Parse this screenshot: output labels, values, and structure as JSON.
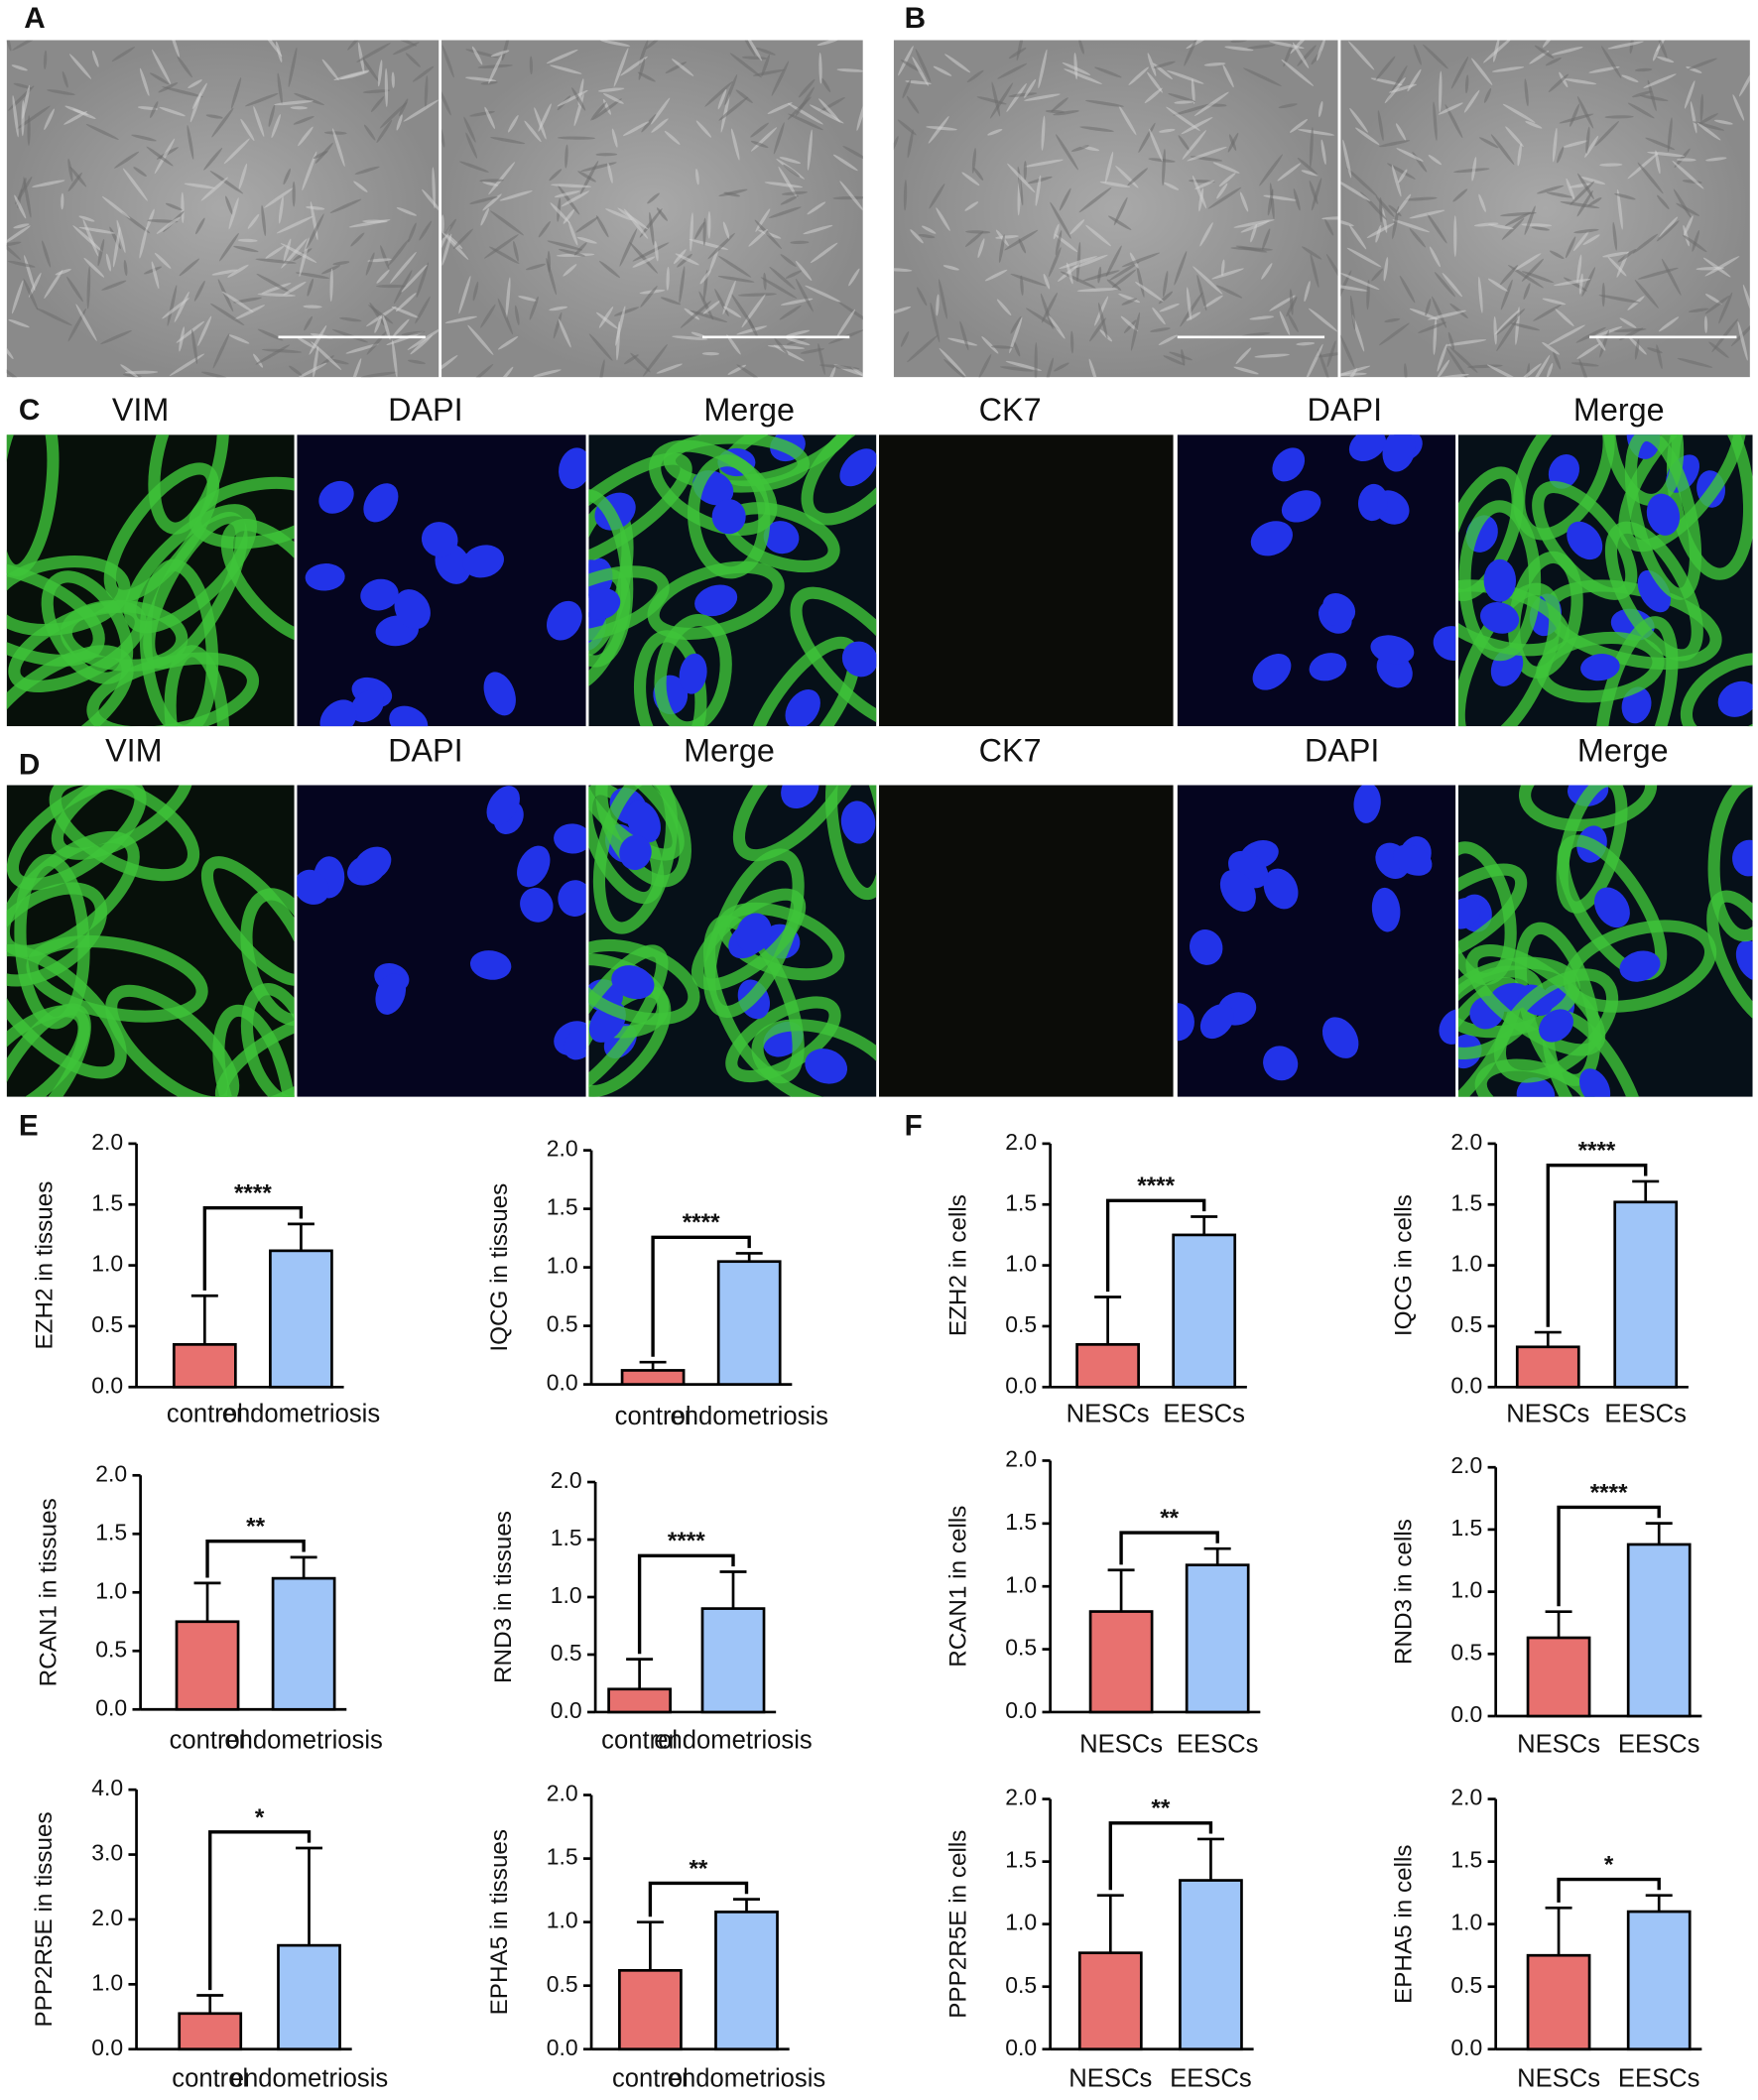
{
  "panel_labels": [
    "A",
    "B",
    "C",
    "D",
    "E",
    "F"
  ],
  "stain_labels": {
    "C": [
      "VIM",
      "DAPI",
      "Merge",
      "CK7",
      "DAPI",
      "Merge"
    ],
    "D": [
      "VIM",
      "DAPI",
      "Merge",
      "CK7",
      "DAPI",
      "Merge"
    ]
  },
  "chart_data": [
    {
      "type": "bar",
      "ylabel": "EZH2 in tissues",
      "categories": [
        "control",
        "endometriosis"
      ],
      "values": [
        0.35,
        1.12
      ],
      "errors": [
        0.4,
        0.22
      ],
      "colors": [
        "#e8716f",
        "#9fc5f8"
      ],
      "significance": "****",
      "ylim": [
        0,
        2
      ],
      "yticks": [
        {
          "value": 0,
          "label": "0.0"
        },
        {
          "value": 0.5,
          "label": "0.5"
        },
        {
          "value": 1,
          "label": "1.0"
        },
        {
          "value": 1.5,
          "label": "1.5"
        },
        {
          "value": 2,
          "label": "2.0"
        }
      ]
    },
    {
      "type": "bar",
      "ylabel": "IQCG in tissues",
      "categories": [
        "control",
        "endometriosis"
      ],
      "values": [
        0.12,
        1.05
      ],
      "errors": [
        0.07,
        0.07
      ],
      "colors": [
        "#e8716f",
        "#9fc5f8"
      ],
      "significance": "****",
      "ylim": [
        0,
        2
      ],
      "yticks": [
        {
          "value": 0,
          "label": "0.0"
        },
        {
          "value": 0.5,
          "label": "0.5"
        },
        {
          "value": 1,
          "label": "1.0"
        },
        {
          "value": 1.5,
          "label": "1.5"
        },
        {
          "value": 2,
          "label": "2.0"
        }
      ]
    },
    {
      "type": "bar",
      "ylabel": "RCAN1 in tissues",
      "categories": [
        "control",
        "endometriosis"
      ],
      "values": [
        0.75,
        1.12
      ],
      "errors": [
        0.33,
        0.18
      ],
      "colors": [
        "#e8716f",
        "#9fc5f8"
      ],
      "significance": "**",
      "ylim": [
        0,
        2
      ],
      "yticks": [
        {
          "value": 0,
          "label": "0.0"
        },
        {
          "value": 0.5,
          "label": "0.5"
        },
        {
          "value": 1,
          "label": "1.0"
        },
        {
          "value": 1.5,
          "label": "1.5"
        },
        {
          "value": 2,
          "label": "2.0"
        }
      ]
    },
    {
      "type": "bar",
      "ylabel": "RND3 in tissues",
      "categories": [
        "control",
        "endometriosis"
      ],
      "values": [
        0.2,
        0.9
      ],
      "errors": [
        0.26,
        0.32
      ],
      "colors": [
        "#e8716f",
        "#9fc5f8"
      ],
      "significance": "****",
      "ylim": [
        0,
        2
      ],
      "yticks": [
        {
          "value": 0,
          "label": "0.0"
        },
        {
          "value": 0.5,
          "label": "0.5"
        },
        {
          "value": 1,
          "label": "1.0"
        },
        {
          "value": 1.5,
          "label": "1.5"
        },
        {
          "value": 2,
          "label": "2.0"
        }
      ]
    },
    {
      "type": "bar",
      "ylabel": "PPP2R5E in tissues",
      "categories": [
        "control",
        "endometriosis"
      ],
      "values": [
        0.55,
        1.6
      ],
      "errors": [
        0.28,
        1.5
      ],
      "colors": [
        "#e8716f",
        "#9fc5f8"
      ],
      "significance": "*",
      "ylim": [
        0,
        4
      ],
      "yticks": [
        {
          "value": 0,
          "label": "0.0"
        },
        {
          "value": 1,
          "label": "1.0"
        },
        {
          "value": 2,
          "label": "2.0"
        },
        {
          "value": 3,
          "label": "3.0"
        },
        {
          "value": 4,
          "label": "4.0"
        }
      ]
    },
    {
      "type": "bar",
      "ylabel": "EPHA5 in tissues",
      "categories": [
        "control",
        "endometriosis"
      ],
      "values": [
        0.62,
        1.08
      ],
      "errors": [
        0.38,
        0.1
      ],
      "colors": [
        "#e8716f",
        "#9fc5f8"
      ],
      "significance": "**",
      "ylim": [
        0,
        2
      ],
      "yticks": [
        {
          "value": 0,
          "label": "0.0"
        },
        {
          "value": 0.5,
          "label": "0.5"
        },
        {
          "value": 1,
          "label": "1.0"
        },
        {
          "value": 1.5,
          "label": "1.5"
        },
        {
          "value": 2,
          "label": "2.0"
        }
      ]
    },
    {
      "type": "bar",
      "ylabel": "EZH2 in cells",
      "categories": [
        "NESCs",
        "EESCs"
      ],
      "values": [
        0.35,
        1.25
      ],
      "errors": [
        0.39,
        0.15
      ],
      "colors": [
        "#e8716f",
        "#9fc5f8"
      ],
      "significance": "****",
      "ylim": [
        0,
        2
      ],
      "yticks": [
        {
          "value": 0,
          "label": "0.0"
        },
        {
          "value": 0.5,
          "label": "0.5"
        },
        {
          "value": 1,
          "label": "1.0"
        },
        {
          "value": 1.5,
          "label": "1.5"
        },
        {
          "value": 2,
          "label": "2.0"
        }
      ]
    },
    {
      "type": "bar",
      "ylabel": "IQCG in cells",
      "categories": [
        "NESCs",
        "EESCs"
      ],
      "values": [
        0.33,
        1.52
      ],
      "errors": [
        0.12,
        0.17
      ],
      "colors": [
        "#e8716f",
        "#9fc5f8"
      ],
      "significance": "****",
      "ylim": [
        0,
        2
      ],
      "yticks": [
        {
          "value": 0,
          "label": "0.0"
        },
        {
          "value": 0.5,
          "label": "0.5"
        },
        {
          "value": 1,
          "label": "1.0"
        },
        {
          "value": 1.5,
          "label": "1.5"
        },
        {
          "value": 2,
          "label": "2.0"
        }
      ]
    },
    {
      "type": "bar",
      "ylabel": "RCAN1 in cells",
      "categories": [
        "NESCs",
        "EESCs"
      ],
      "values": [
        0.8,
        1.17
      ],
      "errors": [
        0.33,
        0.13
      ],
      "colors": [
        "#e8716f",
        "#9fc5f8"
      ],
      "significance": "**",
      "ylim": [
        0,
        2
      ],
      "yticks": [
        {
          "value": 0,
          "label": "0.0"
        },
        {
          "value": 0.5,
          "label": "0.5"
        },
        {
          "value": 1,
          "label": "1.0"
        },
        {
          "value": 1.5,
          "label": "1.5"
        },
        {
          "value": 2,
          "label": "2.0"
        }
      ]
    },
    {
      "type": "bar",
      "ylabel": "RND3 in cells",
      "categories": [
        "NESCs",
        "EESCs"
      ],
      "values": [
        0.63,
        1.38
      ],
      "errors": [
        0.21,
        0.17
      ],
      "colors": [
        "#e8716f",
        "#9fc5f8"
      ],
      "significance": "****",
      "ylim": [
        0,
        2
      ],
      "yticks": [
        {
          "value": 0,
          "label": "0.0"
        },
        {
          "value": 0.5,
          "label": "0.5"
        },
        {
          "value": 1,
          "label": "1.0"
        },
        {
          "value": 1.5,
          "label": "1.5"
        },
        {
          "value": 2,
          "label": "2.0"
        }
      ]
    },
    {
      "type": "bar",
      "ylabel": "PPP2R5E in cells",
      "categories": [
        "NESCs",
        "EESCs"
      ],
      "values": [
        0.77,
        1.35
      ],
      "errors": [
        0.46,
        0.33
      ],
      "colors": [
        "#e8716f",
        "#9fc5f8"
      ],
      "significance": "**",
      "ylim": [
        0,
        2
      ],
      "yticks": [
        {
          "value": 0,
          "label": "0.0"
        },
        {
          "value": 0.5,
          "label": "0.5"
        },
        {
          "value": 1,
          "label": "1.0"
        },
        {
          "value": 1.5,
          "label": "1.5"
        },
        {
          "value": 2,
          "label": "2.0"
        }
      ]
    },
    {
      "type": "bar",
      "ylabel": "EPHA5 in cells",
      "categories": [
        "NESCs",
        "EESCs"
      ],
      "values": [
        0.75,
        1.1
      ],
      "errors": [
        0.38,
        0.13
      ],
      "colors": [
        "#e8716f",
        "#9fc5f8"
      ],
      "significance": "*",
      "ylim": [
        0,
        2
      ],
      "yticks": [
        {
          "value": 0,
          "label": "0.0"
        },
        {
          "value": 0.5,
          "label": "0.5"
        },
        {
          "value": 1,
          "label": "1.0"
        },
        {
          "value": 1.5,
          "label": "1.5"
        },
        {
          "value": 2,
          "label": "2.0"
        }
      ]
    }
  ]
}
